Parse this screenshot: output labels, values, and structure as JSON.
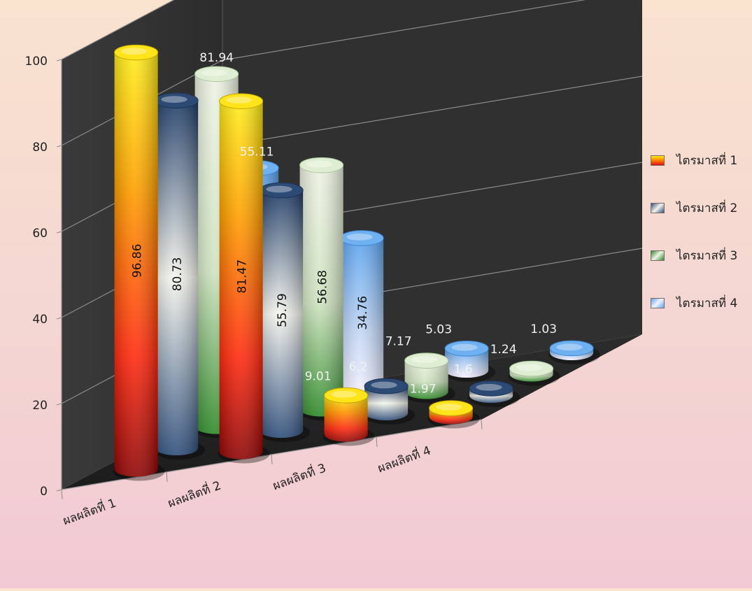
{
  "chart_data": {
    "type": "bar",
    "title": "",
    "xlabel": "",
    "ylabel": "",
    "categories": [
      "ผลผลิตที่ 1",
      "ผลผลิตที่ 2",
      "ผลผลิตที่ 3",
      "ผลผลิตที่ 4"
    ],
    "series": [
      {
        "name": "ไตรมาสที่ 1",
        "values": [
          96.86,
          81.47,
          9.01,
          1.97
        ]
      },
      {
        "name": "ไตรมาสที่ 2",
        "values": [
          80.73,
          55.79,
          6.2,
          1.6
        ]
      },
      {
        "name": "ไตรมาสที่ 3",
        "values": [
          81.94,
          56.68,
          7.17,
          1.24
        ]
      },
      {
        "name": "ไตรมาสที่ 4",
        "values": [
          55.11,
          34.76,
          5.03,
          1.03
        ]
      }
    ],
    "ylim": [
      0,
      100
    ],
    "yticks": [
      0,
      20,
      40,
      60,
      80,
      100
    ],
    "grid": true,
    "legend_position": "right",
    "style": "3d-cylinder",
    "colors": {
      "series": [
        "#f5a21a",
        "#4a6a98",
        "#6cae4f",
        "#7bb5ec"
      ],
      "wall": "#323232",
      "floor": "#222222",
      "gridline": "#8a8a8a"
    }
  },
  "legend": {
    "items": [
      {
        "label": "ไตรมาสที่ 1"
      },
      {
        "label": "ไตรมาสที่ 2"
      },
      {
        "label": "ไตรมาสที่ 3"
      },
      {
        "label": "ไตรมาสที่ 4"
      }
    ]
  }
}
